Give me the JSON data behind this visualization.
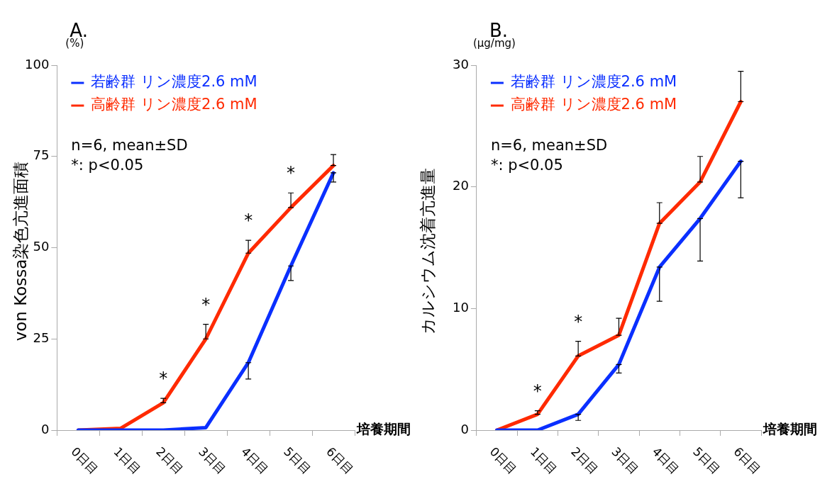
{
  "chart_data": [
    {
      "type": "line",
      "title": "A.",
      "ylabel": "von Kossa染色亢進面積",
      "xlabel": "培養期間",
      "categories": [
        "0日目",
        "1日目",
        "2日目",
        "3日目",
        "4日目",
        "5日目",
        "6日目"
      ],
      "series": [
        {
          "name": "若齢群 リン濃度2.6 mM",
          "color": "#0a2fff",
          "values": [
            0,
            0,
            0,
            0.7,
            18.5,
            45,
            70.5
          ],
          "errors": [
            null,
            null,
            null,
            null,
            [
              14,
              18.5
            ],
            [
              41,
              45
            ],
            [
              68,
              70.5
            ]
          ]
        },
        {
          "name": "高齢群 リン濃度2.6 mM",
          "color": "#ff2a00",
          "values": [
            0,
            0.5,
            7.5,
            25,
            48.5,
            61,
            72.5
          ],
          "errors": [
            null,
            null,
            [
              7.5,
              8.7
            ],
            [
              25,
              29
            ],
            [
              48.5,
              52
            ],
            [
              61,
              65
            ],
            [
              72.5,
              75.5
            ]
          ]
        }
      ],
      "ylim": [
        0,
        100
      ],
      "yticks": [
        0,
        25,
        50,
        75,
        100
      ],
      "grid": false,
      "legend": "top left",
      "marker": "none",
      "line_style": "solid",
      "annotations": [
        "(%)",
        "n=6, mean±SD",
        "*: p<0.05",
        "*",
        "*",
        "*",
        "*"
      ]
    },
    {
      "type": "line",
      "title": "B.",
      "ylabel": "カルシウム沈着亢進量",
      "xlabel": "培養期間",
      "categories": [
        "0日目",
        "1日目",
        "2日目",
        "3日目",
        "4日目",
        "5日目",
        "6日目"
      ],
      "series": [
        {
          "name": "若齢群 リン濃度2.6 mM",
          "color": "#0a2fff",
          "values": [
            0,
            0,
            1.3,
            5.4,
            13.4,
            17.4,
            22.1
          ],
          "errors": [
            null,
            null,
            [
              0.8,
              1.3
            ],
            [
              4.7,
              5.4
            ],
            [
              10.6,
              13.4
            ],
            [
              13.9,
              17.4
            ],
            [
              19.1,
              22.1
            ]
          ]
        },
        {
          "name": "高齢群 リン濃度2.6 mM",
          "color": "#ff2a00",
          "values": [
            0,
            1.3,
            6.1,
            7.8,
            17,
            20.4,
            27
          ],
          "errors": [
            null,
            [
              1.3,
              1.6
            ],
            [
              6.1,
              7.3
            ],
            [
              7.8,
              9.2
            ],
            [
              17,
              18.7
            ],
            [
              20.4,
              22.5
            ],
            [
              27,
              29.5
            ]
          ]
        }
      ],
      "ylim": [
        0,
        30
      ],
      "yticks": [
        0,
        10,
        20,
        30
      ],
      "grid": false,
      "legend": "top left",
      "marker": "none",
      "line_style": "solid",
      "annotations": [
        "(μg/mg)",
        "n=6, mean±SD",
        "*: p<0.05",
        "*",
        "*"
      ]
    }
  ]
}
